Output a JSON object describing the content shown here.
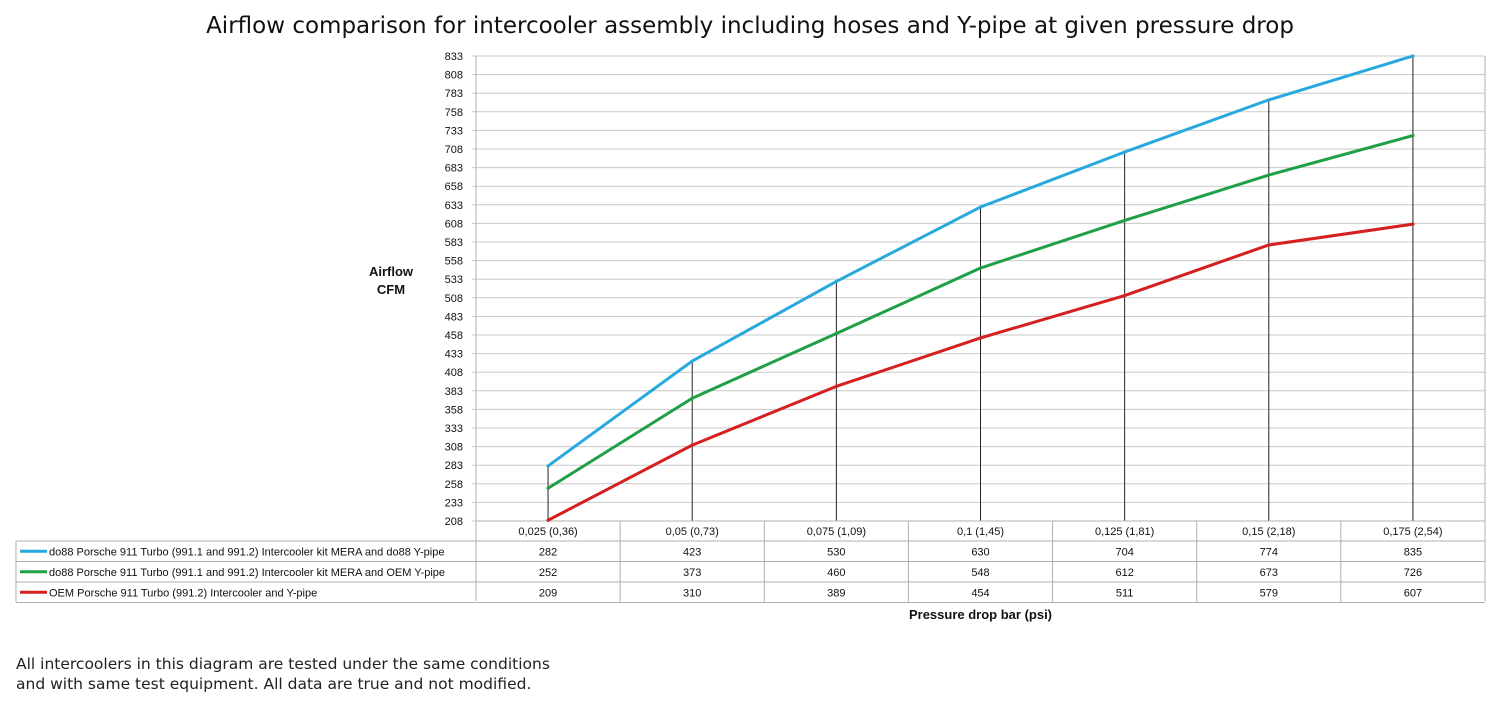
{
  "chart_data": {
    "type": "line",
    "title": "Airflow comparison for intercooler assembly including hoses and Y-pipe at given pressure drop",
    "ylabel": [
      "Airflow",
      "CFM"
    ],
    "xlabel": "Pressure drop bar (psi)",
    "ylim": [
      208,
      833
    ],
    "yticks": [
      "833",
      "808",
      "783",
      "758",
      "733",
      "708",
      "683",
      "658",
      "633",
      "608",
      "583",
      "558",
      "533",
      "508",
      "483",
      "458",
      "433",
      "408",
      "383",
      "358",
      "333",
      "308",
      "283",
      "258",
      "233",
      "208"
    ],
    "categories": [
      "0,025 (0,36)",
      "0,05 (0,73)",
      "0,075 (1,09)",
      "0,1 (1,45)",
      "0,125 (1,81)",
      "0,15 (2,18)",
      "0,175 (2,54)"
    ],
    "grid": true,
    "legend": "data-table",
    "series": [
      {
        "name": "do88 Porsche 911 Turbo (991.1 and 991.2) Intercooler kit MERA and do88 Y-pipe",
        "color": "#27a9dd",
        "values": [
          282,
          423,
          530,
          630,
          704,
          774,
          835
        ]
      },
      {
        "name": "do88 Porsche 911 Turbo (991.1 and 991.2) Intercooler kit MERA and OEM Y-pipe",
        "color": "#1fa046",
        "values": [
          252,
          373,
          460,
          548,
          612,
          673,
          726
        ]
      },
      {
        "name": "OEM Porsche 911 Turbo (991.2) Intercooler and Y-pipe",
        "color": "#d42020",
        "values": [
          209,
          310,
          389,
          454,
          511,
          579,
          607
        ]
      }
    ]
  },
  "footnote": {
    "line1": "All intercoolers in this diagram are tested under the same conditions",
    "line2": "and with same test equipment. All data are true and not modified."
  }
}
